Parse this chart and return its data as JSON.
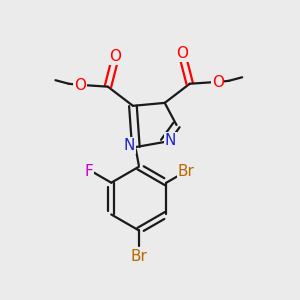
{
  "background_color": "#ebebeb",
  "bond_color": "#1a1a1a",
  "bond_lw": 1.6,
  "dbo": 0.013,
  "figsize": [
    3.0,
    3.0
  ],
  "dpi": 100,
  "colors": {
    "O": "#ff0000",
    "N": "#2222cc",
    "F": "#cc00cc",
    "Br": "#bb6600",
    "C": "#1a1a1a"
  }
}
